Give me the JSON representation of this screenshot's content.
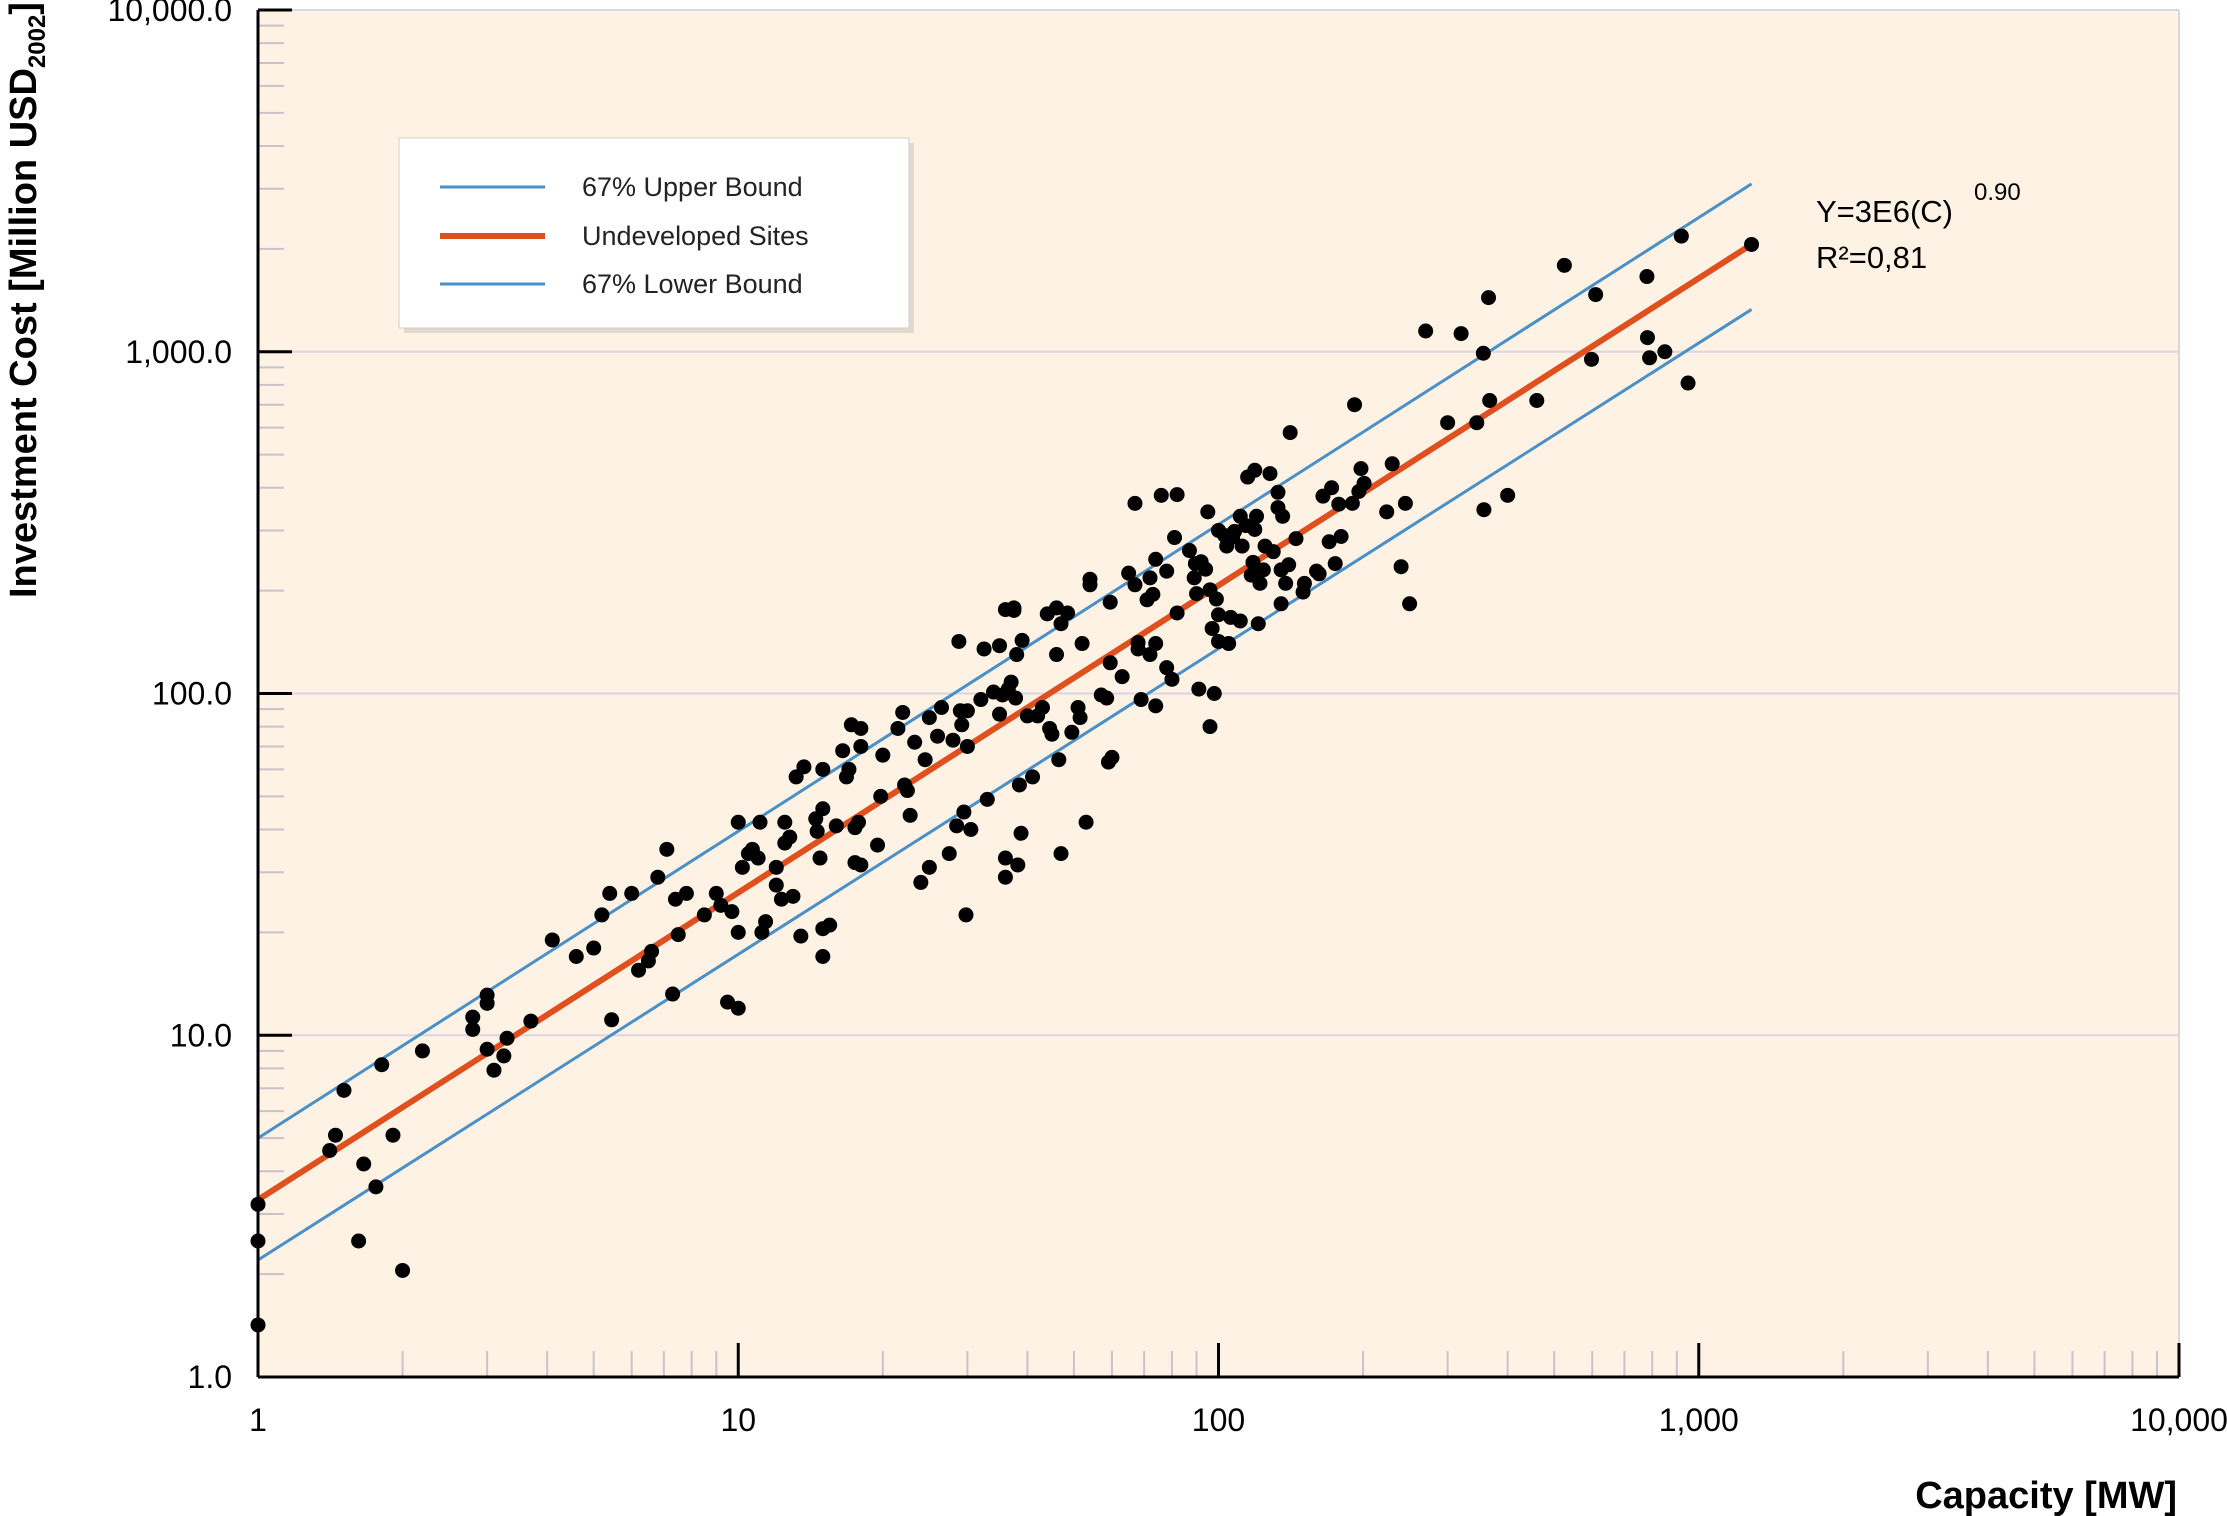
{
  "chart_data": {
    "type": "scatter",
    "xlabel": "Capacity [MW]",
    "ylabel_main": "Investment Cost [Million USD",
    "ylabel_sub": "2002",
    "ylabel_end": "]",
    "xscale": "log",
    "yscale": "log",
    "xlim": [
      1,
      10000
    ],
    "ylim": [
      1,
      10000
    ],
    "x_ticks": [
      1,
      10,
      100,
      1000,
      10000
    ],
    "x_tick_labels": [
      "1",
      "10",
      "100",
      "1,000",
      "10,000"
    ],
    "y_ticks": [
      1,
      10,
      100,
      1000,
      10000
    ],
    "y_tick_labels": [
      "1.0",
      "10.0",
      "100.0",
      "1,000.0",
      "10,000.0"
    ],
    "grid": "horizontal at decades",
    "colors": {
      "plot_background": "#fdf2e3",
      "grid": "#dcd4e4",
      "upper_bound": "#4a90c8",
      "fit": "#e0501e",
      "lower_bound": "#4a90c8",
      "points": "#000000"
    },
    "legend": {
      "placement": "upper-left",
      "entries": [
        {
          "label": "67% Upper Bound",
          "series": "upper"
        },
        {
          "label": "Undeveloped Sites",
          "series": "fit"
        },
        {
          "label": "67% Lower Bound",
          "series": "lower"
        }
      ]
    },
    "annotation": {
      "equation": "Y=3E6(C)",
      "exponent": "0.90",
      "r2": "R²=0,81"
    },
    "lines": [
      {
        "series": "upper",
        "x": [
          1,
          1288
        ],
        "y": [
          5.0,
          3100
        ]
      },
      {
        "series": "fit",
        "x": [
          1,
          1288
        ],
        "y": [
          3.3,
          2060
        ]
      },
      {
        "series": "lower",
        "x": [
          1,
          1288
        ],
        "y": [
          2.2,
          1330
        ]
      }
    ],
    "points": [
      [
        1.0,
        3.2
      ],
      [
        1.0,
        2.5
      ],
      [
        1.0,
        1.42
      ],
      [
        1.41,
        4.6
      ],
      [
        1.45,
        5.1
      ],
      [
        1.51,
        6.9
      ],
      [
        1.62,
        2.5
      ],
      [
        1.66,
        4.2
      ],
      [
        1.76,
        3.6
      ],
      [
        1.81,
        8.2
      ],
      [
        1.91,
        5.1
      ],
      [
        2.0,
        2.05
      ],
      [
        2.2,
        9.0
      ],
      [
        2.8,
        11.3
      ],
      [
        2.8,
        10.4
      ],
      [
        3.0,
        13.1
      ],
      [
        3.0,
        12.4
      ],
      [
        3.0,
        9.1
      ],
      [
        3.1,
        7.9
      ],
      [
        3.25,
        8.7
      ],
      [
        3.3,
        9.8
      ],
      [
        3.7,
        11.0
      ],
      [
        4.1,
        19.0
      ],
      [
        4.6,
        17.0
      ],
      [
        5.0,
        18.0
      ],
      [
        5.2,
        22.5
      ],
      [
        5.4,
        26.0
      ],
      [
        5.45,
        11.1
      ],
      [
        6.0,
        26.0
      ],
      [
        6.2,
        15.5
      ],
      [
        6.5,
        16.5
      ],
      [
        6.6,
        17.6
      ],
      [
        6.8,
        29.0
      ],
      [
        7.1,
        35.0
      ],
      [
        7.3,
        13.2
      ],
      [
        7.4,
        25.0
      ],
      [
        7.5,
        19.7
      ],
      [
        7.8,
        26.0
      ],
      [
        8.5,
        22.5
      ],
      [
        9.0,
        26.0
      ],
      [
        9.2,
        24.0
      ],
      [
        9.5,
        12.5
      ],
      [
        9.7,
        23.0
      ],
      [
        10.0,
        42.0
      ],
      [
        10.0,
        20.0
      ],
      [
        10.0,
        12.0
      ],
      [
        10.2,
        31.0
      ],
      [
        10.5,
        34.0
      ],
      [
        10.7,
        35.0
      ],
      [
        11.0,
        33.0
      ],
      [
        11.1,
        42.0
      ],
      [
        11.2,
        20.0
      ],
      [
        11.4,
        21.5
      ],
      [
        12.0,
        27.5
      ],
      [
        12.0,
        31.0
      ],
      [
        12.3,
        25.0
      ],
      [
        12.5,
        42.0
      ],
      [
        12.5,
        36.5
      ],
      [
        12.8,
        38.0
      ],
      [
        13.0,
        25.5
      ],
      [
        13.2,
        57.0
      ],
      [
        13.5,
        19.5
      ],
      [
        13.7,
        61.0
      ],
      [
        14.5,
        43.0
      ],
      [
        14.6,
        39.5
      ],
      [
        14.8,
        33.0
      ],
      [
        15.0,
        46.0
      ],
      [
        15.0,
        20.5
      ],
      [
        15.0,
        17.0
      ],
      [
        15.0,
        60.0
      ],
      [
        15.5,
        21.0
      ],
      [
        16.0,
        41.0
      ],
      [
        16.5,
        68.0
      ],
      [
        16.8,
        57.0
      ],
      [
        17.0,
        60.0
      ],
      [
        17.2,
        81.0
      ],
      [
        17.5,
        40.5
      ],
      [
        17.5,
        32.0
      ],
      [
        17.8,
        42.0
      ],
      [
        18.0,
        79.0
      ],
      [
        18.0,
        70.0
      ],
      [
        18.0,
        31.5
      ],
      [
        19.5,
        36.0
      ],
      [
        19.8,
        50.0
      ],
      [
        20.0,
        66.0
      ],
      [
        21.5,
        79.0
      ],
      [
        22.0,
        88.0
      ],
      [
        22.2,
        54.0
      ],
      [
        22.5,
        52.0
      ],
      [
        22.8,
        44.0
      ],
      [
        23.3,
        72.0
      ],
      [
        24.0,
        28.0
      ],
      [
        24.5,
        64.0
      ],
      [
        25.0,
        85.0
      ],
      [
        25.0,
        31.0
      ],
      [
        26.0,
        75.0
      ],
      [
        26.5,
        91.0
      ],
      [
        27.5,
        34.0
      ],
      [
        28.0,
        73.0
      ],
      [
        28.5,
        41.0
      ],
      [
        28.8,
        142.0
      ],
      [
        29.0,
        89.0
      ],
      [
        29.2,
        81.0
      ],
      [
        29.5,
        45.0
      ],
      [
        29.8,
        22.5
      ],
      [
        30.0,
        89.0
      ],
      [
        30.0,
        70.0
      ],
      [
        30.5,
        40.0
      ],
      [
        32.0,
        96.0
      ],
      [
        32.5,
        135.0
      ],
      [
        33.0,
        49.0
      ],
      [
        34.0,
        101.0
      ],
      [
        35.0,
        87.0
      ],
      [
        35.0,
        138.0
      ],
      [
        35.5,
        99.0
      ],
      [
        36.0,
        33.0
      ],
      [
        36.0,
        29.0
      ],
      [
        36.0,
        176.0
      ],
      [
        36.5,
        103.0
      ],
      [
        37.0,
        108.0
      ],
      [
        37.5,
        175.0
      ],
      [
        37.5,
        178.0
      ],
      [
        37.8,
        97.0
      ],
      [
        38.0,
        130.0
      ],
      [
        38.2,
        31.5
      ],
      [
        38.5,
        54.0
      ],
      [
        38.8,
        39.0
      ],
      [
        39.0,
        143.0
      ],
      [
        40.0,
        86.0
      ],
      [
        41.0,
        57.0
      ],
      [
        42.0,
        86.0
      ],
      [
        43.0,
        91.0
      ],
      [
        44.0,
        171.0
      ],
      [
        44.5,
        79.0
      ],
      [
        45.0,
        76.0
      ],
      [
        46.0,
        178.0
      ],
      [
        46.0,
        130.0
      ],
      [
        46.5,
        64.0
      ],
      [
        47.0,
        34.0
      ],
      [
        47.0,
        160.0
      ],
      [
        48.5,
        172.0
      ],
      [
        49.5,
        77.0
      ],
      [
        51.0,
        91.0
      ],
      [
        51.5,
        85.0
      ],
      [
        52.0,
        140.0
      ],
      [
        53.0,
        42.0
      ],
      [
        54.0,
        216.0
      ],
      [
        54.0,
        208.0
      ],
      [
        57.0,
        99.0
      ],
      [
        58.5,
        97.0
      ],
      [
        59.0,
        63.0
      ],
      [
        59.5,
        185.0
      ],
      [
        59.5,
        123.0
      ],
      [
        60.0,
        65.0
      ],
      [
        63.0,
        112.0
      ],
      [
        65.0,
        225.0
      ],
      [
        67.0,
        360.0
      ],
      [
        67.0,
        208.0
      ],
      [
        68.0,
        141.0
      ],
      [
        68.0,
        135.0
      ],
      [
        69.0,
        96.0
      ],
      [
        71.0,
        188.0
      ],
      [
        72.0,
        130.0
      ],
      [
        72.0,
        218.0
      ],
      [
        73.0,
        195.0
      ],
      [
        74.0,
        247.0
      ],
      [
        74.0,
        92.0
      ],
      [
        74.0,
        140.0
      ],
      [
        76.0,
        380.0
      ],
      [
        78.0,
        119.0
      ],
      [
        78.0,
        228.0
      ],
      [
        80.0,
        110.0
      ],
      [
        81.0,
        286.0
      ],
      [
        82.0,
        382.0
      ],
      [
        82.0,
        172.0
      ],
      [
        87.0,
        262.0
      ],
      [
        89.0,
        218.0
      ],
      [
        89.5,
        240.0
      ],
      [
        90.0,
        196.0
      ],
      [
        91.0,
        103.0
      ],
      [
        92.0,
        243.0
      ],
      [
        94.0,
        231.0
      ],
      [
        95.0,
        340.0
      ],
      [
        96.0,
        80.0
      ],
      [
        96.0,
        201.0
      ],
      [
        97.0,
        155.0
      ],
      [
        98.0,
        100.0
      ],
      [
        99.0,
        189.0
      ],
      [
        100.0,
        142.0
      ],
      [
        100.0,
        170.0
      ],
      [
        100.0,
        300.0
      ],
      [
        103.0,
        290.0
      ],
      [
        104.0,
        270.0
      ],
      [
        105.0,
        140.0
      ],
      [
        106.0,
        167.0
      ],
      [
        107.0,
        287.0
      ],
      [
        108.0,
        298.0
      ],
      [
        111.0,
        163.0
      ],
      [
        111.0,
        330.0
      ],
      [
        112.0,
        270.0
      ],
      [
        114.0,
        310.0
      ],
      [
        115.0,
        430.0
      ],
      [
        117.0,
        222.0
      ],
      [
        118.0,
        242.0
      ],
      [
        119.0,
        302.0
      ],
      [
        119.0,
        450.0
      ],
      [
        120.0,
        330.0
      ],
      [
        121.0,
        160.0
      ],
      [
        122.0,
        210.0
      ],
      [
        124.0,
        230.0
      ],
      [
        125.0,
        270.0
      ],
      [
        128.0,
        440.0
      ],
      [
        130.0,
        260.0
      ],
      [
        133.0,
        388.0
      ],
      [
        133.0,
        350.0
      ],
      [
        135.0,
        230.0
      ],
      [
        135.0,
        183.0
      ],
      [
        136.0,
        330.0
      ],
      [
        138.0,
        210.0
      ],
      [
        140.0,
        238.0
      ],
      [
        141.0,
        580.0
      ],
      [
        145.0,
        284.0
      ],
      [
        150.0,
        198.0
      ],
      [
        151.0,
        210.0
      ],
      [
        160.0,
        228.0
      ],
      [
        162.0,
        224.0
      ],
      [
        165.0,
        378.0
      ],
      [
        170.0,
        278.0
      ],
      [
        172.0,
        400.0
      ],
      [
        175.0,
        240.0
      ],
      [
        178.0,
        358.0
      ],
      [
        180.0,
        288.0
      ],
      [
        190.0,
        360.0
      ],
      [
        192.0,
        700.0
      ],
      [
        196.0,
        390.0
      ],
      [
        198.0,
        455.0
      ],
      [
        201.0,
        412.0
      ],
      [
        224.0,
        340.0
      ],
      [
        230.0,
        470.0
      ],
      [
        240.0,
        235.0
      ],
      [
        245.0,
        360.0
      ],
      [
        250.0,
        183.0
      ],
      [
        270.0,
        1150.0
      ],
      [
        300.0,
        620.0
      ],
      [
        320.0,
        1130.0
      ],
      [
        345.0,
        620.0
      ],
      [
        356.0,
        990.0
      ],
      [
        357.0,
        345.0
      ],
      [
        365.0,
        1440.0
      ],
      [
        367.0,
        720.0
      ],
      [
        400.0,
        380.0
      ],
      [
        460.0,
        720.0
      ],
      [
        525.0,
        1790.0
      ],
      [
        598.0,
        950.0
      ],
      [
        610.0,
        1470.0
      ],
      [
        780.0,
        1660.0
      ],
      [
        782.0,
        1100.0
      ],
      [
        790.0,
        960.0
      ],
      [
        850.0,
        1000.0
      ],
      [
        920.0,
        2180.0
      ],
      [
        950.0,
        810.0
      ],
      [
        1288.0,
        2060.0
      ]
    ]
  }
}
